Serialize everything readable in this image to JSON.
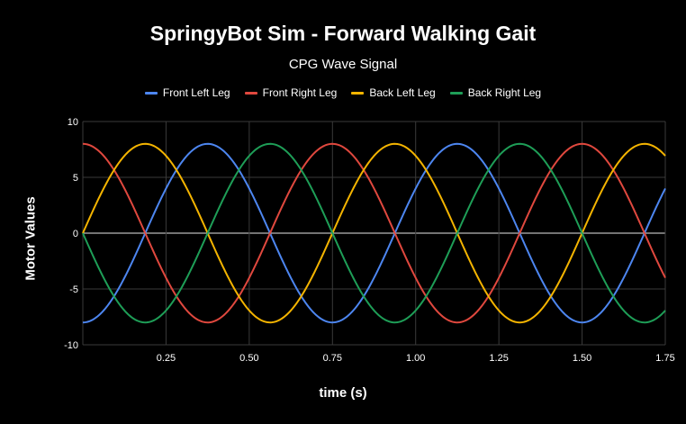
{
  "chart_data": {
    "type": "line",
    "title": "SpringyBot Sim - Forward Walking Gait",
    "subtitle": "CPG Wave Signal",
    "xlabel": "time (s)",
    "ylabel": "Motor Values",
    "xlim": [
      0,
      1.75
    ],
    "ylim": [
      -10,
      10
    ],
    "x_ticks": [
      "0.25",
      "0.50",
      "0.75",
      "1.00",
      "1.25",
      "1.50",
      "1.75"
    ],
    "y_ticks": [
      "10",
      "5",
      "0",
      "-5",
      "-10"
    ],
    "grid": true,
    "legend_position": "top",
    "series": [
      {
        "name": "Front Left Leg",
        "color": "#4d86f0",
        "amplitude": 8,
        "period_s": 0.75,
        "phase_offset_s": 0.1875,
        "sample_values": {
          "0.0": -8,
          "0.1875": 0,
          "0.375": 8,
          "0.5625": 0,
          "0.75": -8,
          "1.125": 8,
          "1.5": -8,
          "1.75": 4
        }
      },
      {
        "name": "Front Right Leg",
        "color": "#e0483e",
        "amplitude": 8,
        "period_s": 0.75,
        "phase_offset_s": 0.1875,
        "sample_values": {
          "0.0": 8,
          "0.1875": 0,
          "0.375": -8,
          "0.5625": 0,
          "0.75": 8,
          "1.125": -8,
          "1.5": 8,
          "1.75": -4
        }
      },
      {
        "name": "Back Left Leg",
        "color": "#f4b400",
        "amplitude": 8,
        "period_s": 0.75,
        "phase_offset_s": 0.1875,
        "sample_values": {
          "0.0": 0,
          "0.1875": 8,
          "0.375": 0,
          "0.5625": -8,
          "0.75": 0,
          "0.9375": 8,
          "1.3125": -8,
          "1.6875": 8,
          "1.75": 7
        }
      },
      {
        "name": "Back Right Leg",
        "color": "#1e9e57",
        "amplitude": 8,
        "period_s": 0.75,
        "phase_offset_s": 0.1875,
        "sample_values": {
          "0.0": 0,
          "0.1875": -8,
          "0.375": 0,
          "0.5625": 8,
          "0.75": 0,
          "0.9375": -8,
          "1.3125": 8,
          "1.6875": -8,
          "1.75": -7
        }
      }
    ]
  }
}
